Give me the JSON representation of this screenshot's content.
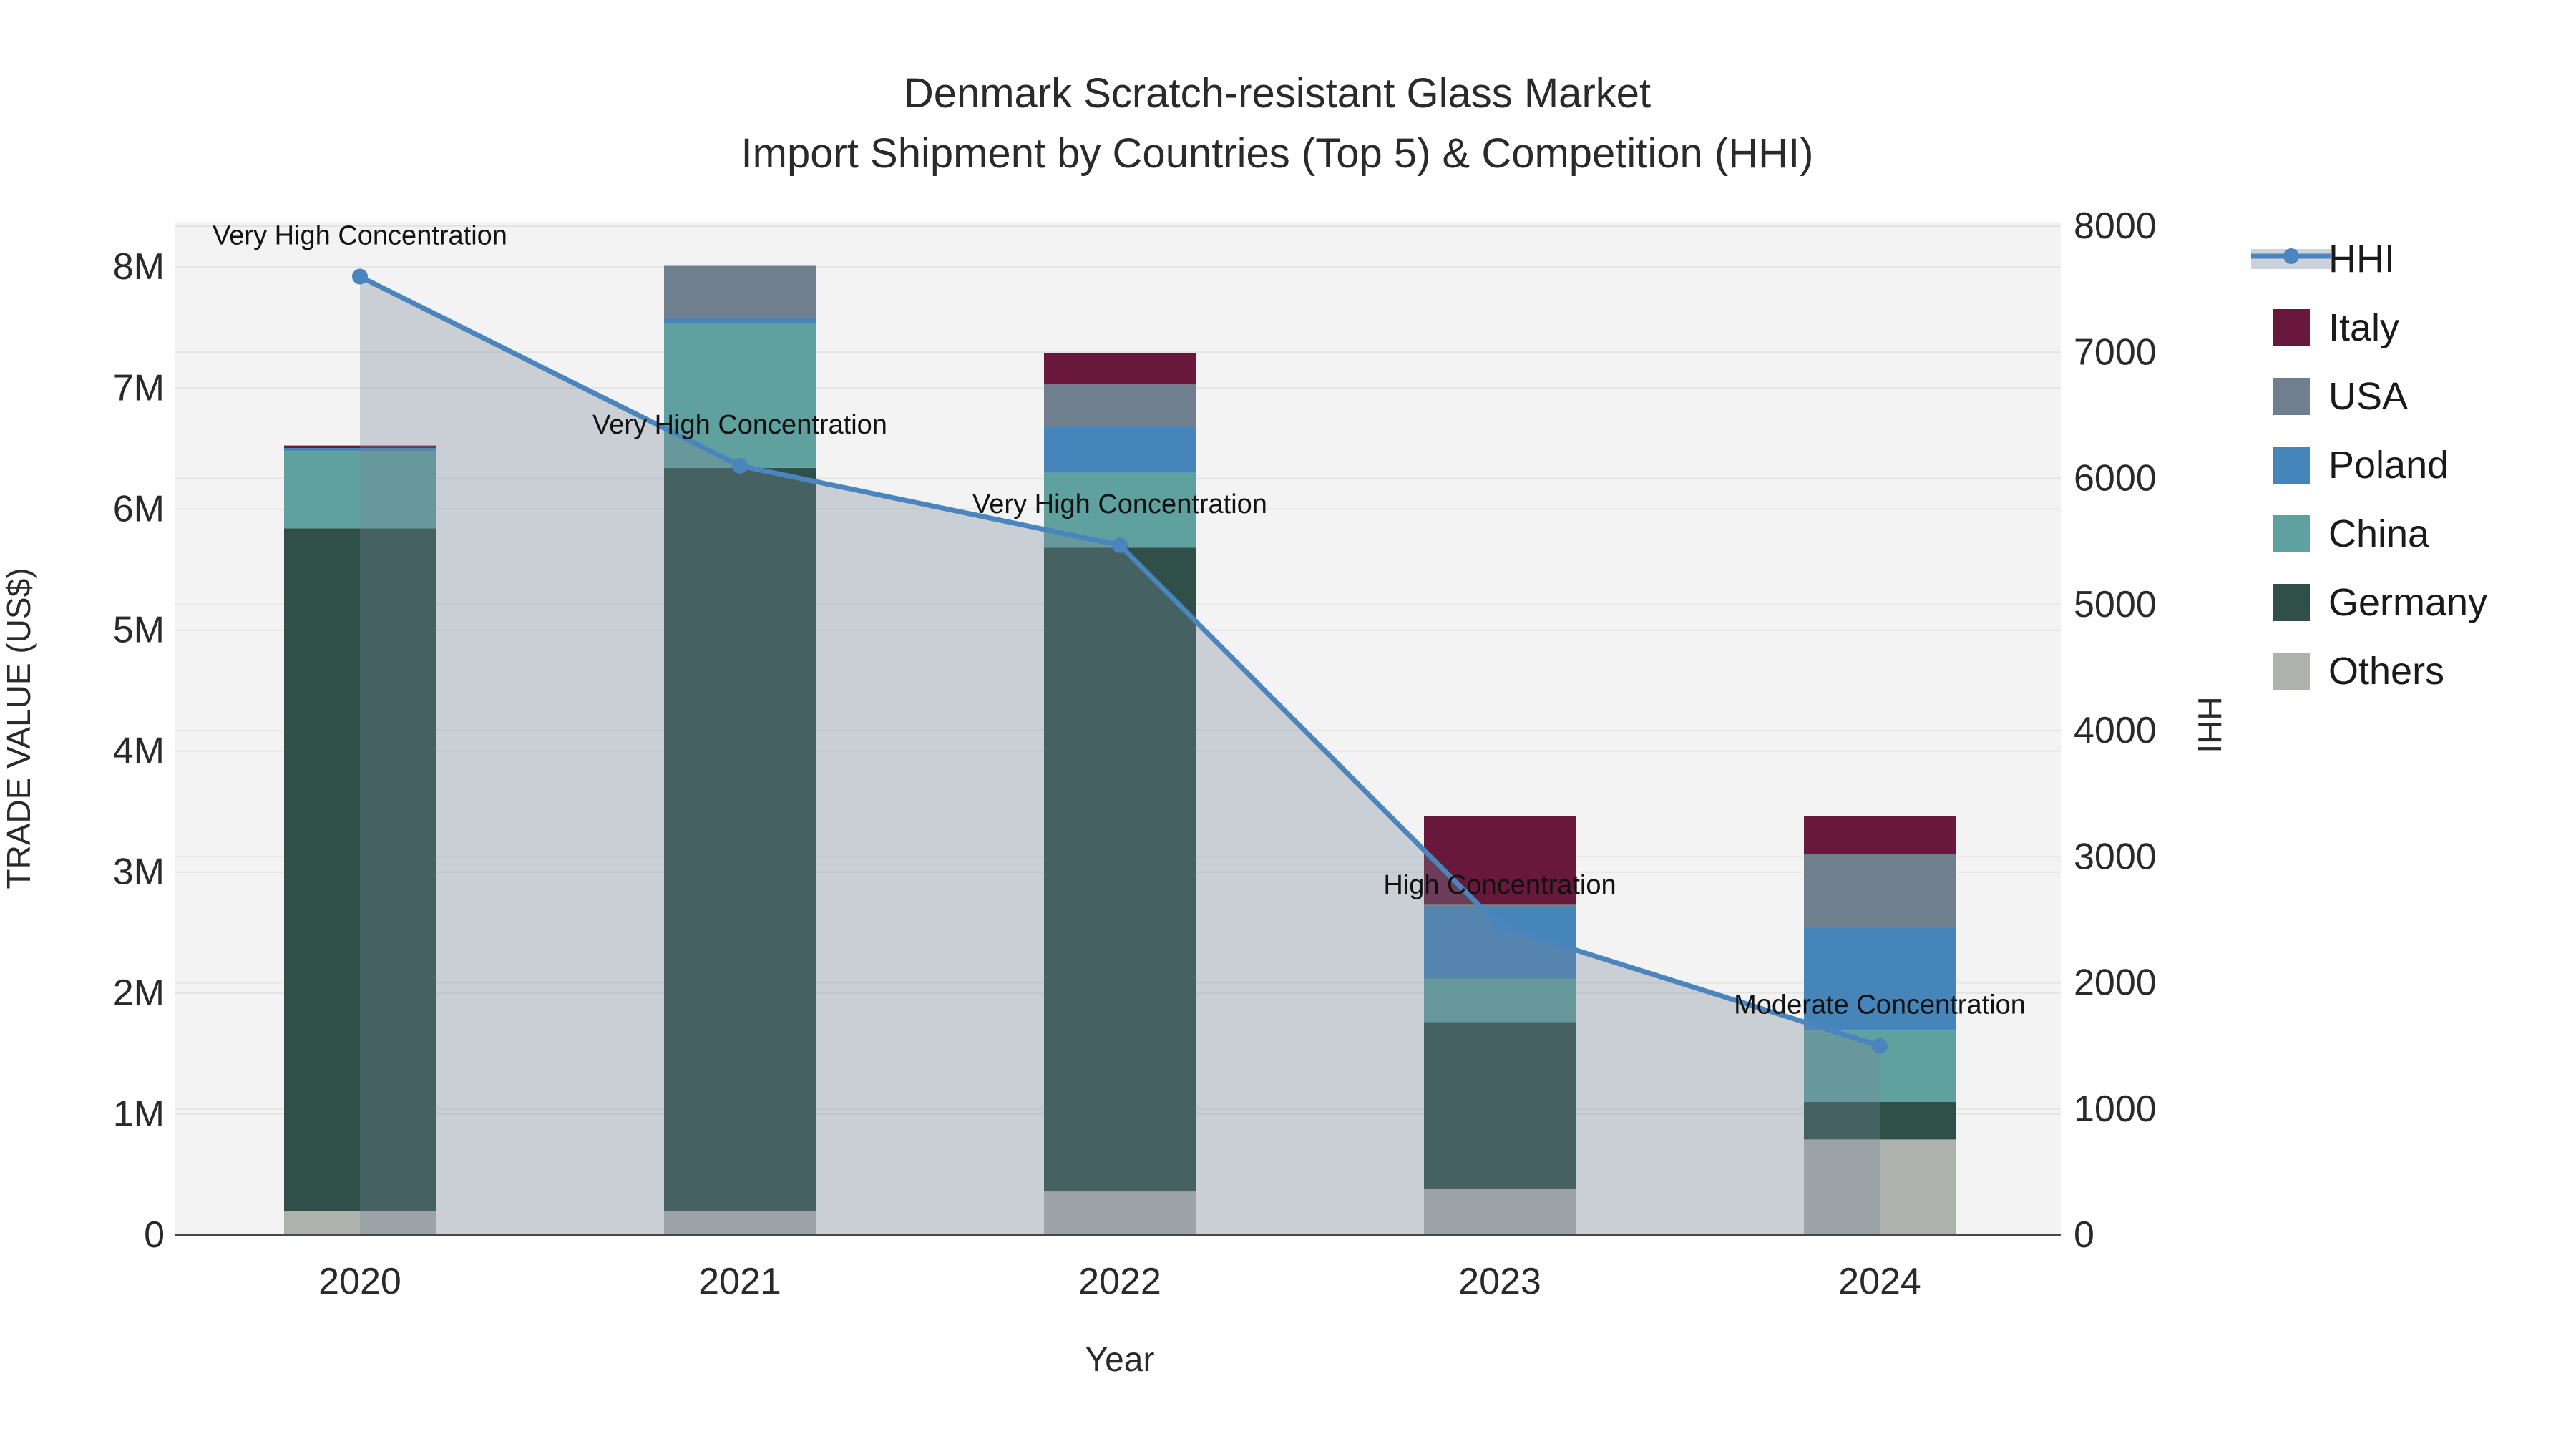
{
  "chart_data": {
    "type": "bar+line",
    "title_line1": "Denmark Scratch-resistant Glass Market",
    "title_line2": "Import Shipment by Countries (Top 5) & Competition (HHI)",
    "xlabel": "Year",
    "ylabel_left": "TRADE VALUE (US$)",
    "ylabel_right": "HHI",
    "categories": [
      "2020",
      "2021",
      "2022",
      "2023",
      "2024"
    ],
    "stack_order": [
      "Others",
      "Germany",
      "China",
      "Poland",
      "USA",
      "Italy"
    ],
    "series": [
      {
        "name": "Others",
        "color": "#ADB2AD",
        "values": [
          200000,
          200000,
          360000,
          380000,
          790000
        ]
      },
      {
        "name": "Germany",
        "color": "#2F4F48",
        "values": [
          5640000,
          6140000,
          5320000,
          1380000,
          310000
        ]
      },
      {
        "name": "China",
        "color": "#5FA19E",
        "values": [
          640000,
          1190000,
          620000,
          360000,
          590000
        ]
      },
      {
        "name": "Poland",
        "color": "#4585BA",
        "values": [
          25000,
          50000,
          380000,
          590000,
          850000
        ]
      },
      {
        "name": "USA",
        "color": "#707F8E",
        "values": [
          0,
          430000,
          350000,
          20000,
          610000
        ]
      },
      {
        "name": "Italy",
        "color": "#68193B",
        "values": [
          20000,
          0,
          260000,
          730000,
          310000
        ]
      }
    ],
    "hhi": {
      "name": "HHI",
      "color": "#4A85BD",
      "fill_color": "rgba(119,133,152,0.33)",
      "values": [
        7600,
        6100,
        5470,
        2450,
        1500
      ]
    },
    "annotations": [
      {
        "year": "2020",
        "text": "Very High Concentration"
      },
      {
        "year": "2021",
        "text": "Very High Concentration"
      },
      {
        "year": "2022",
        "text": "Very High Concentration"
      },
      {
        "year": "2023",
        "text": "High Concentration"
      },
      {
        "year": "2024",
        "text": "Moderate Concentration"
      }
    ],
    "axes": {
      "left": {
        "title": "TRADE VALUE (US$)",
        "ticks": [
          "0",
          "1M",
          "2M",
          "3M",
          "4M",
          "5M",
          "6M",
          "7M",
          "8M"
        ],
        "range_usd": [
          0,
          8000000
        ]
      },
      "right": {
        "title": "HHI",
        "ticks": [
          "0",
          "1000",
          "2000",
          "3000",
          "4000",
          "5000",
          "6000",
          "7000",
          "8000"
        ],
        "range": [
          0,
          8000
        ]
      },
      "x": {
        "title": "Year",
        "ticks": [
          "2020",
          "2021",
          "2022",
          "2023",
          "2024"
        ]
      }
    },
    "legend": [
      {
        "label": "HHI",
        "type": "line",
        "color": "#4A85BD"
      },
      {
        "label": "Italy",
        "type": "swatch",
        "color": "#68193B"
      },
      {
        "label": "USA",
        "type": "swatch",
        "color": "#707F8E"
      },
      {
        "label": "Poland",
        "type": "swatch",
        "color": "#4585BA"
      },
      {
        "label": "China",
        "type": "swatch",
        "color": "#5FA19E"
      },
      {
        "label": "Germany",
        "type": "swatch",
        "color": "#2F4F48"
      },
      {
        "label": "Others",
        "type": "swatch",
        "color": "#ADB2AD"
      }
    ],
    "colors": {
      "plot_bg": "#F2F3F2",
      "grid": "#E3E5E3",
      "zero_line": "#45494A",
      "text": "#2A2A2A",
      "annotation_text": "#111111"
    }
  }
}
